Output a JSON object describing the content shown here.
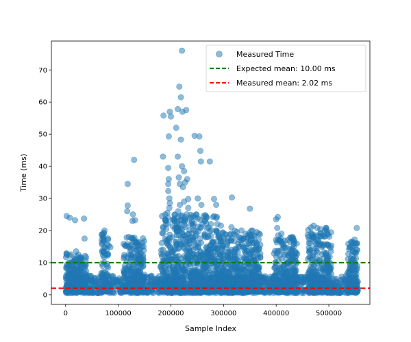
{
  "chart_data": {
    "type": "scatter",
    "xlabel": "Sample Index",
    "ylabel": "Time (ms)",
    "xlim": [
      -27000,
      578000
    ],
    "ylim": [
      -3,
      79
    ],
    "x_ticks": [
      0,
      100000,
      200000,
      300000,
      400000,
      500000
    ],
    "x_tick_labels": [
      "0",
      "100000",
      "200000",
      "300000",
      "400000",
      "500000"
    ],
    "y_ticks": [
      0,
      10,
      20,
      30,
      40,
      50,
      60,
      70
    ],
    "y_tick_labels": [
      "0",
      "10",
      "20",
      "30",
      "40",
      "50",
      "60",
      "70"
    ],
    "grid": false,
    "legend_position": "top-right",
    "colors": {
      "points": "#1f77b4",
      "expected_mean": "#008000",
      "measured_mean": "#ff0000"
    },
    "series": [
      {
        "name": "Measured Time",
        "kind": "scatter",
        "dense_band": {
          "x_start": 0,
          "x_end": 555000,
          "y_min": 0.5,
          "y_max": 6
        },
        "clusters": [
          {
            "x_start": 0,
            "x_end": 40000,
            "y_max": 13
          },
          {
            "x_start": 68000,
            "x_end": 82000,
            "y_max": 20
          },
          {
            "x_start": 110000,
            "x_end": 150000,
            "y_max": 18
          },
          {
            "x_start": 180000,
            "x_end": 290000,
            "y_max": 25
          },
          {
            "x_start": 290000,
            "x_end": 370000,
            "y_max": 20
          },
          {
            "x_start": 395000,
            "x_end": 440000,
            "y_max": 18
          },
          {
            "x_start": 460000,
            "x_end": 505000,
            "y_max": 21
          },
          {
            "x_start": 535000,
            "x_end": 555000,
            "y_max": 17
          }
        ],
        "outliers": [
          [
            2000,
            24.5
          ],
          [
            8000,
            24.0
          ],
          [
            18000,
            23.2
          ],
          [
            35000,
            23.7
          ],
          [
            36000,
            17.5
          ],
          [
            20000,
            13.5
          ],
          [
            74000,
            20.0
          ],
          [
            73000,
            19.2
          ],
          [
            85000,
            14.8
          ],
          [
            118000,
            34.5
          ],
          [
            118000,
            27.8
          ],
          [
            117000,
            26.0
          ],
          [
            128000,
            25.0
          ],
          [
            130000,
            42.0
          ],
          [
            132000,
            23.2
          ],
          [
            127000,
            23.0
          ],
          [
            120000,
            18.0
          ],
          [
            145000,
            15.0
          ],
          [
            185000,
            43.0
          ],
          [
            186000,
            55.8
          ],
          [
            196000,
            49.3
          ],
          [
            198000,
            57.0
          ],
          [
            195000,
            39.5
          ],
          [
            196000,
            36.0
          ],
          [
            195000,
            34.5
          ],
          [
            195000,
            32.3
          ],
          [
            197000,
            30.0
          ],
          [
            198000,
            28.5
          ],
          [
            197000,
            27.0
          ],
          [
            193000,
            25.5
          ],
          [
            190000,
            23.0
          ],
          [
            205000,
            23.5
          ],
          [
            207000,
            23.0
          ],
          [
            200000,
            55.5
          ],
          [
            210000,
            52.0
          ],
          [
            213000,
            57.8
          ],
          [
            216000,
            64.8
          ],
          [
            219000,
            61.5
          ],
          [
            221000,
            76.0
          ],
          [
            222000,
            57.0
          ],
          [
            219000,
            48.3
          ],
          [
            213000,
            43.0
          ],
          [
            215000,
            36.5
          ],
          [
            217000,
            34.5
          ],
          [
            221000,
            40.0
          ],
          [
            225000,
            38.5
          ],
          [
            227000,
            35.0
          ],
          [
            223000,
            33.5
          ],
          [
            229000,
            57.5
          ],
          [
            231000,
            36.0
          ],
          [
            233000,
            29.8
          ],
          [
            230000,
            25.0
          ],
          [
            238000,
            22.0
          ],
          [
            217000,
            28.0
          ],
          [
            214000,
            26.0
          ],
          [
            225000,
            29.0
          ],
          [
            233000,
            27.0
          ],
          [
            245000,
            49.5
          ],
          [
            254000,
            49.3
          ],
          [
            256000,
            44.8
          ],
          [
            257000,
            41.5
          ],
          [
            274000,
            41.5
          ],
          [
            258000,
            28.0
          ],
          [
            251000,
            30.0
          ],
          [
            248000,
            25.0
          ],
          [
            262000,
            24.5
          ],
          [
            260000,
            22.0
          ],
          [
            276000,
            22.0
          ],
          [
            282000,
            29.8
          ],
          [
            286000,
            28.0
          ],
          [
            295000,
            21.5
          ],
          [
            282000,
            24.5
          ],
          [
            286000,
            20.0
          ],
          [
            290000,
            18.0
          ],
          [
            316000,
            30.3
          ],
          [
            315000,
            21.0
          ],
          [
            323000,
            18.5
          ],
          [
            334000,
            20.0
          ],
          [
            331000,
            17.0
          ],
          [
            350000,
            26.8
          ],
          [
            355000,
            20.0
          ],
          [
            358000,
            18.5
          ],
          [
            352000,
            17.0
          ],
          [
            345000,
            15.8
          ],
          [
            400000,
            23.5
          ],
          [
            403000,
            24.2
          ],
          [
            402000,
            20.8
          ],
          [
            404000,
            18.5
          ],
          [
            406000,
            17.0
          ],
          [
            410000,
            19.0
          ],
          [
            416000,
            16.8
          ],
          [
            427000,
            17.8
          ],
          [
            433000,
            12.5
          ],
          [
            432000,
            10.8
          ],
          [
            471000,
            21.5
          ],
          [
            478000,
            20.8
          ],
          [
            471000,
            18.0
          ],
          [
            480000,
            17.0
          ],
          [
            483000,
            15.5
          ],
          [
            476000,
            14.5
          ],
          [
            495000,
            13.0
          ],
          [
            498000,
            12.0
          ],
          [
            549000,
            17.2
          ],
          [
            551000,
            16.0
          ],
          [
            553000,
            20.8
          ],
          [
            544000,
            12.5
          ],
          [
            546000,
            13.5
          ]
        ]
      },
      {
        "name": "Expected mean: 10.00 ms",
        "kind": "hline",
        "y": 10.0,
        "style": "dashed"
      },
      {
        "name": "Measured mean: 2.02 ms",
        "kind": "hline",
        "y": 2.02,
        "style": "dashed"
      }
    ]
  }
}
